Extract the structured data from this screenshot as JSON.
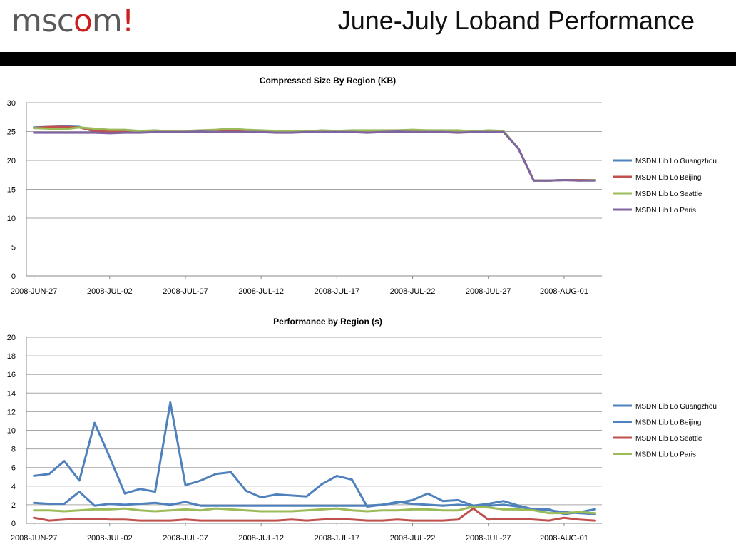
{
  "header": {
    "logo": {
      "prefix": "msc",
      "o": "o",
      "suffix": "m",
      "bang": "!"
    },
    "title": "June-July Loband Performance"
  },
  "colors": {
    "blue": "#4f81bd",
    "red": "#c0504d",
    "green": "#9bbb59",
    "purple": "#8064a2"
  },
  "chart_data": [
    {
      "type": "line",
      "title": "Compressed Size By Region (KB)",
      "xlabel": "",
      "ylabel": "",
      "x_tick_labels": [
        "2008-JUN-27",
        "2008-JUL-02",
        "2008-JUL-07",
        "2008-JUL-12",
        "2008-JUL-17",
        "2008-JUL-22",
        "2008-JUL-27",
        "2008-AUG-01"
      ],
      "ylim": [
        0,
        30
      ],
      "y_ticks": [
        0,
        5,
        10,
        15,
        20,
        25,
        30
      ],
      "grid": true,
      "legend_position": "right",
      "series": [
        {
          "name": "MSDN Lib Lo Guangzhou",
          "color": "#4f81bd",
          "values": [
            25.7,
            25.8,
            25.9,
            25.8,
            25.0,
            24.9,
            25.0,
            25.0,
            25.0,
            25.0,
            25.0,
            25.0,
            25.1,
            25.0,
            25.0,
            25.0,
            24.9,
            25.0,
            25.0,
            25.0,
            25.0,
            25.0,
            25.0,
            25.1,
            25.0,
            25.1,
            25.1,
            25.0,
            25.0,
            24.9,
            25.0,
            25.0,
            22.0,
            16.5,
            16.5,
            16.6,
            16.6,
            16.6
          ]
        },
        {
          "name": "MSDN Lib Lo Beijing",
          "color": "#c0504d",
          "values": [
            25.6,
            25.8,
            25.8,
            25.7,
            25.1,
            25.0,
            25.1,
            25.0,
            25.0,
            25.0,
            25.1,
            25.0,
            25.1,
            25.0,
            25.0,
            25.0,
            24.9,
            25.0,
            25.0,
            25.0,
            25.0,
            25.0,
            24.8,
            25.0,
            25.0,
            25.0,
            25.0,
            25.0,
            24.9,
            25.0,
            25.0,
            25.0,
            22.0,
            16.5,
            16.5,
            16.6,
            16.6,
            16.6
          ]
        },
        {
          "name": "MSDN Lib Lo Seattle",
          "color": "#9bbb59",
          "values": [
            25.6,
            25.5,
            25.4,
            25.7,
            25.5,
            25.3,
            25.3,
            25.1,
            25.2,
            25.0,
            25.1,
            25.2,
            25.3,
            25.5,
            25.3,
            25.2,
            25.1,
            25.1,
            25.0,
            25.2,
            25.1,
            25.2,
            25.2,
            25.2,
            25.2,
            25.3,
            25.2,
            25.2,
            25.2,
            25.0,
            25.2,
            25.1,
            22.0,
            16.5,
            16.5,
            16.6,
            16.5,
            16.6
          ]
        },
        {
          "name": "MSDN Lib Lo Paris",
          "color": "#8064a2",
          "values": [
            24.8,
            24.8,
            24.8,
            24.8,
            24.8,
            24.7,
            24.8,
            24.8,
            24.9,
            24.9,
            24.9,
            25.0,
            24.9,
            24.9,
            24.9,
            24.9,
            24.8,
            24.8,
            24.9,
            24.9,
            24.9,
            24.9,
            24.8,
            24.9,
            25.0,
            24.9,
            24.9,
            24.9,
            24.8,
            24.9,
            24.9,
            24.9,
            22.0,
            16.5,
            16.5,
            16.6,
            16.5,
            16.5
          ]
        }
      ]
    },
    {
      "type": "line",
      "title": "Performance  by Region (s)",
      "xlabel": "",
      "ylabel": "",
      "x_tick_labels": [
        "2008-JUN-27",
        "2008-JUL-02",
        "2008-JUL-07",
        "2008-JUL-12",
        "2008-JUL-17",
        "2008-JUL-22",
        "2008-JUL-27",
        "2008-AUG-01"
      ],
      "ylim": [
        0,
        20
      ],
      "y_ticks": [
        0,
        2,
        4,
        6,
        8,
        10,
        12,
        14,
        16,
        18,
        20
      ],
      "grid": true,
      "legend_position": "right",
      "series": [
        {
          "name": "MSDN Lib Lo Guangzhou",
          "color": "#4f81bd",
          "values": [
            5.1,
            5.3,
            6.7,
            4.6,
            10.8,
            7.1,
            3.2,
            3.7,
            3.4,
            13.0,
            4.1,
            4.6,
            5.3,
            5.5,
            3.5,
            2.8,
            3.1,
            3.0,
            2.9,
            4.2,
            5.1,
            4.7,
            1.8,
            2.0,
            2.2,
            2.5,
            3.2,
            2.4,
            2.5,
            1.9,
            2.1,
            2.4,
            1.9,
            1.5,
            1.5,
            1.0,
            1.2,
            1.5
          ]
        },
        {
          "name": "MSDN Lib Lo Beijing",
          "color": "#4f81bd",
          "values": [
            2.2,
            2.1,
            2.1,
            3.4,
            1.9,
            2.1,
            2.0,
            2.1,
            2.2,
            2.0,
            2.3,
            1.9,
            1.9,
            1.9,
            1.9,
            1.9,
            1.9,
            1.9,
            1.9,
            1.9,
            1.9,
            1.9,
            1.9,
            2.0,
            2.3,
            2.1,
            2.0,
            1.9,
            2.0,
            1.9,
            1.9,
            2.0,
            1.8,
            1.5,
            1.4,
            1.2,
            1.1,
            1.0
          ]
        },
        {
          "name": "MSDN Lib Lo Seattle",
          "color": "#c0504d",
          "values": [
            0.6,
            0.3,
            0.4,
            0.5,
            0.5,
            0.4,
            0.4,
            0.3,
            0.3,
            0.3,
            0.4,
            0.3,
            0.3,
            0.3,
            0.3,
            0.3,
            0.3,
            0.4,
            0.3,
            0.4,
            0.5,
            0.4,
            0.3,
            0.3,
            0.4,
            0.3,
            0.3,
            0.3,
            0.4,
            1.6,
            0.4,
            0.5,
            0.5,
            0.4,
            0.3,
            0.6,
            0.4,
            0.3
          ]
        },
        {
          "name": "MSDN Lib Lo Paris",
          "color": "#9bbb59",
          "values": [
            1.4,
            1.4,
            1.3,
            1.4,
            1.5,
            1.5,
            1.6,
            1.4,
            1.3,
            1.4,
            1.5,
            1.4,
            1.6,
            1.5,
            1.4,
            1.3,
            1.3,
            1.3,
            1.4,
            1.5,
            1.6,
            1.4,
            1.3,
            1.4,
            1.4,
            1.5,
            1.5,
            1.4,
            1.4,
            1.8,
            1.7,
            1.5,
            1.5,
            1.4,
            1.1,
            1.1,
            1.2,
            1.1
          ]
        }
      ]
    }
  ]
}
